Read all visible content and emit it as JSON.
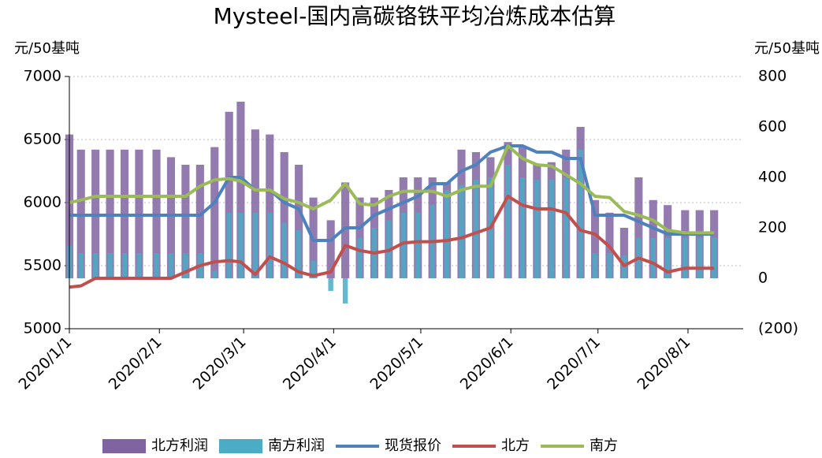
{
  "chart_data": {
    "type": "bar",
    "title": "Mysteel-国内高碳铬铁平均冶炼成本估算",
    "y_label": "元/50基吨",
    "y2_label": "元/50基吨",
    "x": [
      "2020/1/1",
      "2020/1/5",
      "2020/1/10",
      "2020/1/15",
      "2020/1/20",
      "2020/1/25",
      "2020/1/31",
      "2020/2/5",
      "2020/2/10",
      "2020/2/15",
      "2020/2/20",
      "2020/2/25",
      "2020/2/29",
      "2020/3/5",
      "2020/3/10",
      "2020/3/15",
      "2020/3/20",
      "2020/3/25",
      "2020/3/31",
      "2020/4/5",
      "2020/4/10",
      "2020/4/15",
      "2020/4/20",
      "2020/4/25",
      "2020/4/30",
      "2020/5/5",
      "2020/5/10",
      "2020/5/15",
      "2020/5/20",
      "2020/5/25",
      "2020/5/31",
      "2020/6/5",
      "2020/6/10",
      "2020/6/15",
      "2020/6/20",
      "2020/6/25",
      "2020/6/30",
      "2020/7/5",
      "2020/7/10",
      "2020/7/15",
      "2020/7/20",
      "2020/7/25",
      "2020/7/31",
      "2020/8/5",
      "2020/8/10"
    ],
    "xlim": [
      "2020/1/1",
      "2020/8/20"
    ],
    "xticks": [
      "2020/1/1",
      "2020/2/1",
      "2020/3/1",
      "2020/4/1",
      "2020/5/1",
      "2020/6/1",
      "2020/7/1",
      "2020/8/1"
    ],
    "ylim": [
      5000,
      7000
    ],
    "yticks": [
      5000,
      5500,
      6000,
      6500,
      7000
    ],
    "y2lim": [
      -200,
      800
    ],
    "y2ticks": [
      {
        "value": -200,
        "label": "(200)",
        "color": "#e00000"
      },
      0,
      200,
      400,
      600,
      800
    ],
    "grid": true,
    "legend": "bottom",
    "series": [
      {
        "name": "北方利润",
        "type": "bar",
        "axis": "y2",
        "color": "#8064a2",
        "values": [
          570,
          510,
          510,
          510,
          510,
          510,
          510,
          480,
          450,
          450,
          520,
          660,
          700,
          590,
          570,
          500,
          450,
          320,
          230,
          380,
          320,
          320,
          350,
          400,
          400,
          400,
          380,
          510,
          500,
          480,
          540,
          520,
          450,
          460,
          510,
          600,
          310,
          260,
          200,
          400,
          310,
          290,
          270,
          270,
          270
        ]
      },
      {
        "name": "南方利润",
        "type": "bar",
        "axis": "y2",
        "color": "#4bacc6",
        "values": [
          130,
          100,
          100,
          100,
          100,
          100,
          100,
          100,
          100,
          100,
          30,
          260,
          260,
          260,
          260,
          220,
          190,
          70,
          -50,
          -100,
          160,
          200,
          230,
          260,
          260,
          290,
          350,
          370,
          390,
          400,
          450,
          400,
          390,
          390,
          400,
          510,
          100,
          100,
          90,
          160,
          160,
          160,
          160,
          160,
          160
        ]
      },
      {
        "name": "现货报价",
        "type": "line",
        "color": "#4f81bd",
        "values": [
          5900,
          5900,
          5900,
          5900,
          5900,
          5900,
          5900,
          5900,
          5900,
          5900,
          6000,
          6200,
          6200,
          6100,
          6100,
          6000,
          5950,
          5700,
          5700,
          5800,
          5800,
          5900,
          5950,
          6000,
          6050,
          6150,
          6150,
          6250,
          6300,
          6400,
          6450,
          6450,
          6400,
          6400,
          6350,
          6350,
          5900,
          5900,
          5900,
          5850,
          5800,
          5750,
          5750,
          5750,
          5750
        ]
      },
      {
        "name": "北方",
        "type": "line",
        "color": "#c0504d",
        "values": [
          5330,
          5340,
          5400,
          5400,
          5400,
          5400,
          5400,
          5400,
          5450,
          5500,
          5530,
          5540,
          5530,
          5430,
          5570,
          5520,
          5450,
          5420,
          5450,
          5660,
          5620,
          5600,
          5620,
          5680,
          5690,
          5690,
          5700,
          5720,
          5760,
          5800,
          6050,
          5980,
          5950,
          5950,
          5920,
          5780,
          5750,
          5650,
          5500,
          5560,
          5520,
          5450,
          5480,
          5480,
          5480
        ]
      },
      {
        "name": "南方",
        "type": "line",
        "color": "#9bbb59",
        "values": [
          6000,
          6020,
          6050,
          6050,
          6050,
          6050,
          6050,
          6050,
          6050,
          6130,
          6180,
          6190,
          6170,
          6100,
          6100,
          6030,
          6000,
          5950,
          6020,
          6150,
          5990,
          5980,
          6050,
          6090,
          6090,
          6090,
          6050,
          6100,
          6130,
          6130,
          6450,
          6350,
          6300,
          6290,
          6220,
          6150,
          6050,
          6040,
          5930,
          5900,
          5860,
          5780,
          5760,
          5760,
          5760
        ]
      }
    ]
  }
}
